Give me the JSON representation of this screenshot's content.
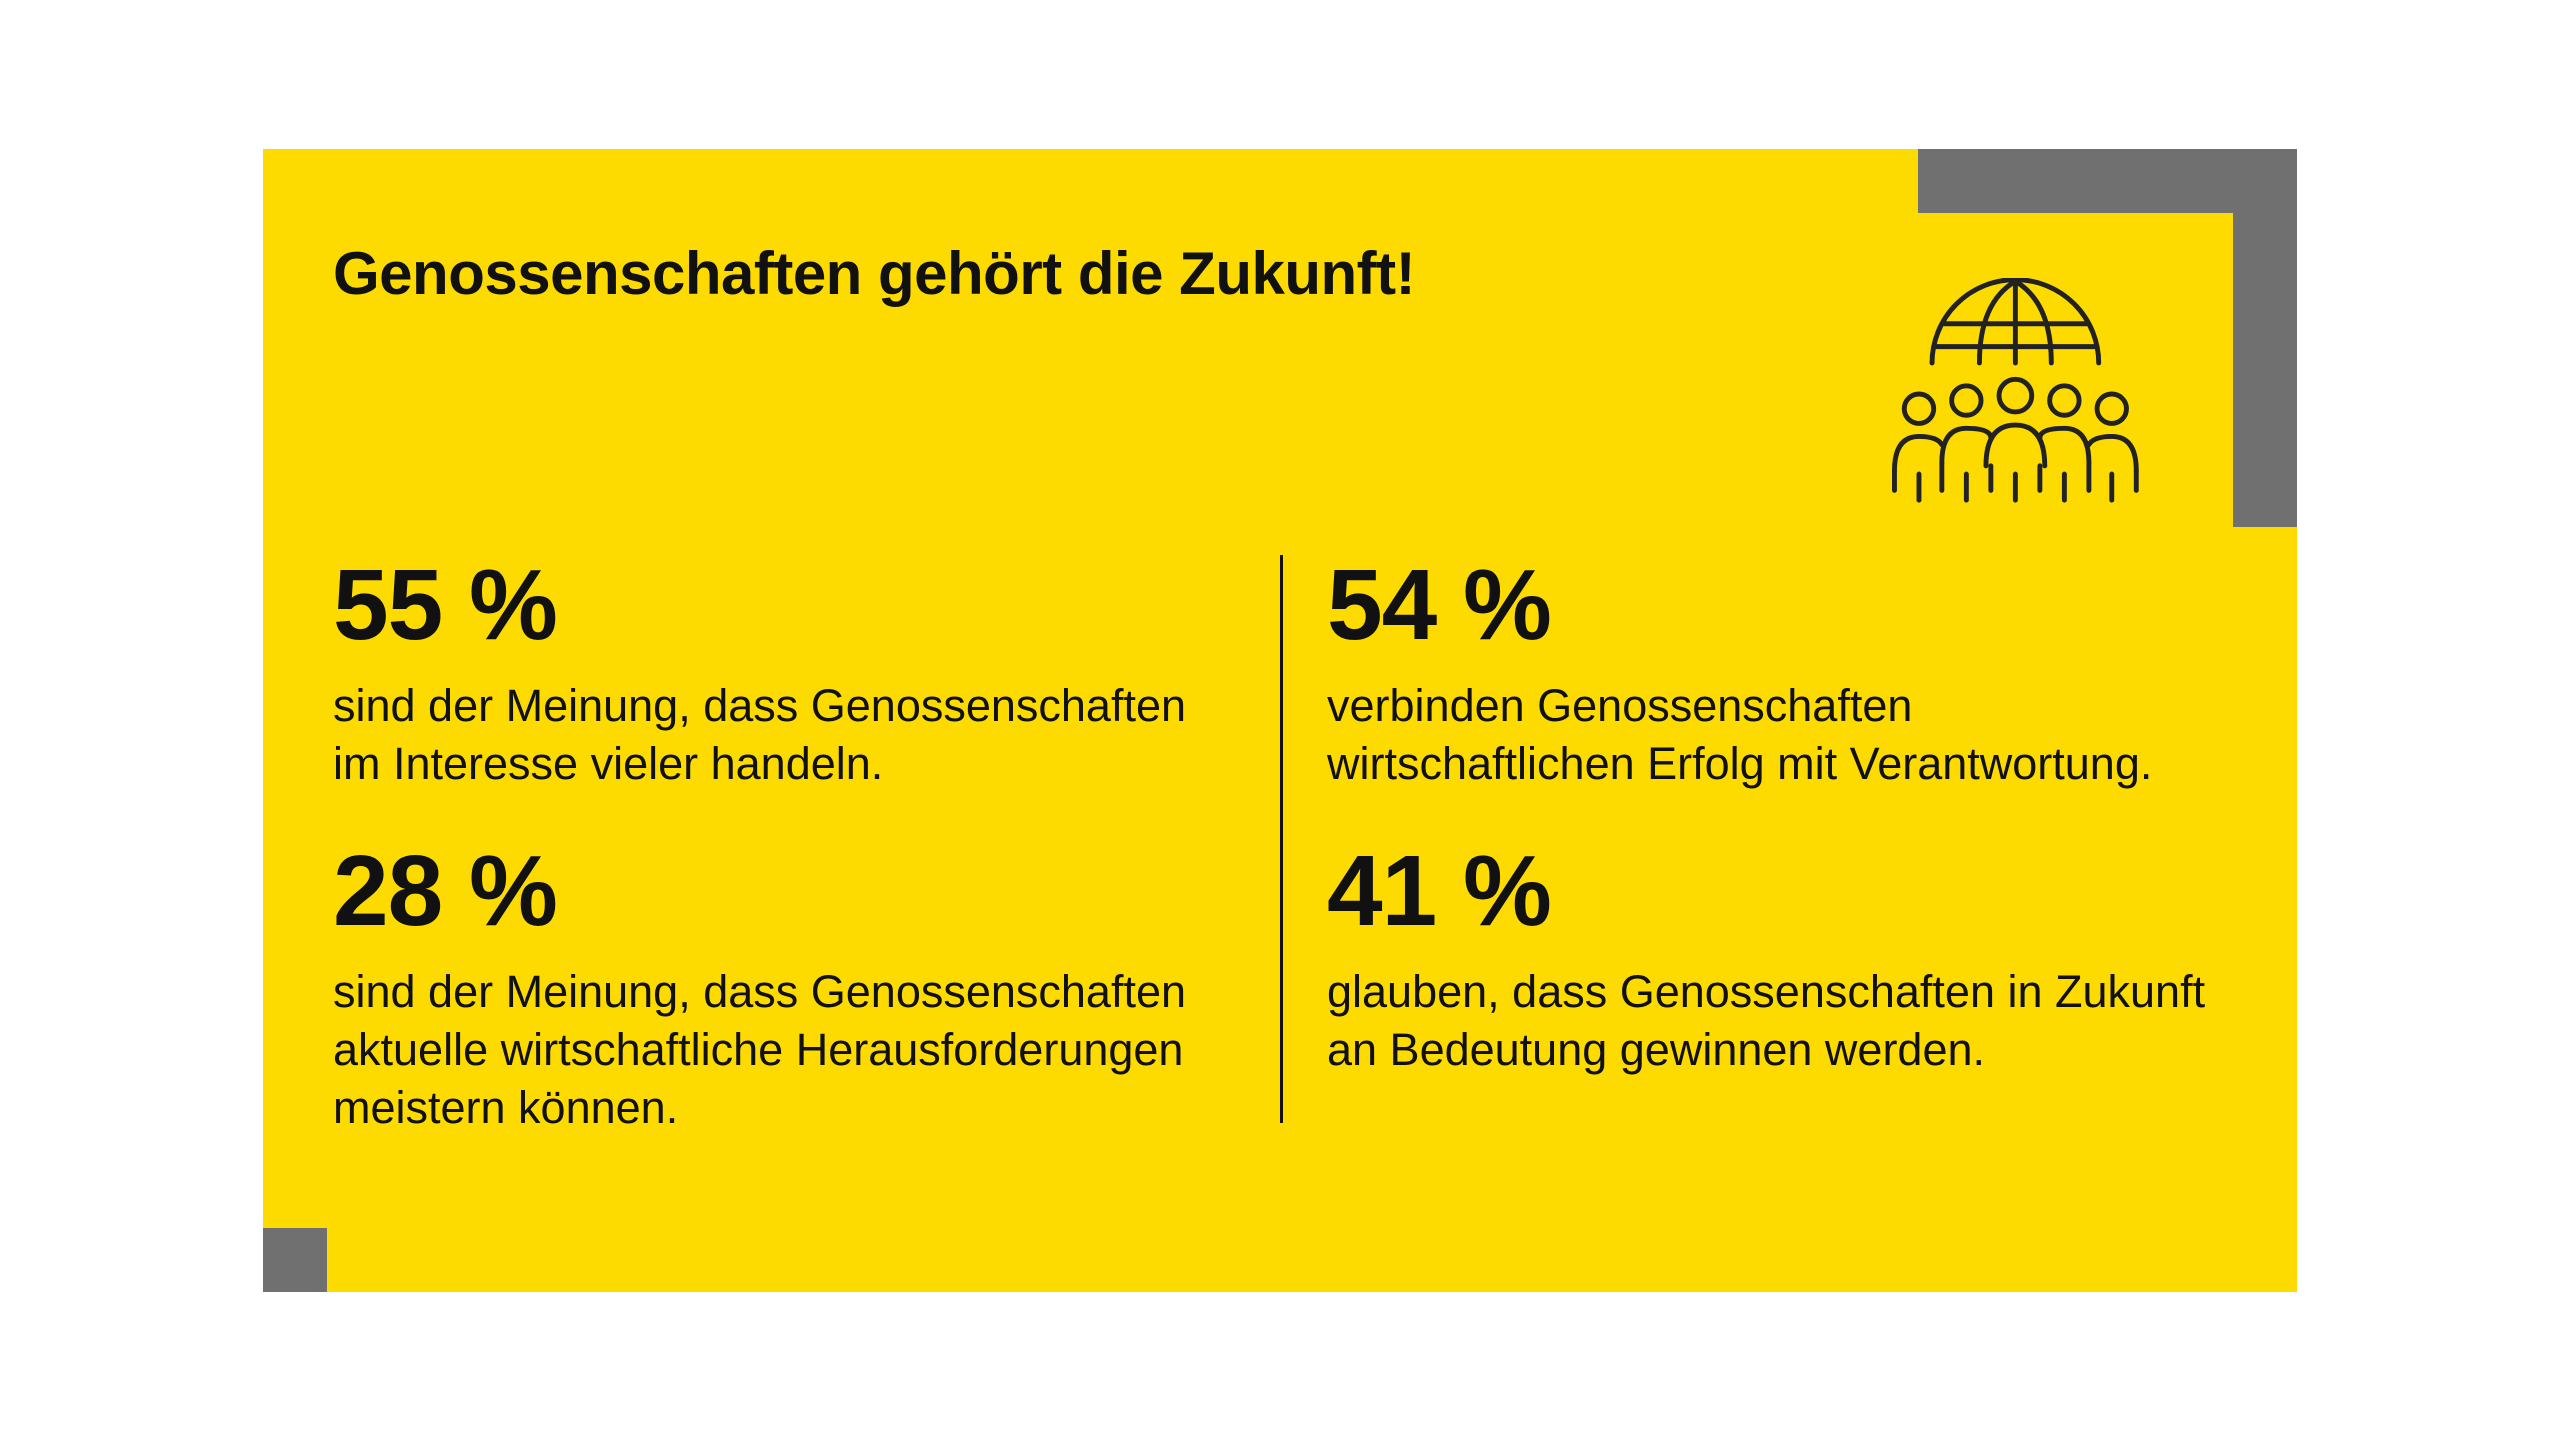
{
  "header": {
    "title": "Genossenschaften gehört die Zukunft!"
  },
  "stats": [
    {
      "value": "55 %",
      "lines": [
        "sind der Meinung, dass Genossenschaften",
        "im Interesse vieler handeln."
      ]
    },
    {
      "value": "54 %",
      "lines": [
        "verbinden Genossenschaften",
        "wirtschaftlichen Erfolg mit Verantwortung."
      ]
    },
    {
      "value": "28 %",
      "lines": [
        "sind der Meinung, dass Genossenschaften",
        "aktuelle wirtschaftliche Herausforderungen",
        "meistern können."
      ]
    },
    {
      "value": "41 %",
      "lines": [
        "glauben, dass Genossenschaften in Zukunft",
        "an Bedeutung gewinnen werden."
      ]
    }
  ]
}
